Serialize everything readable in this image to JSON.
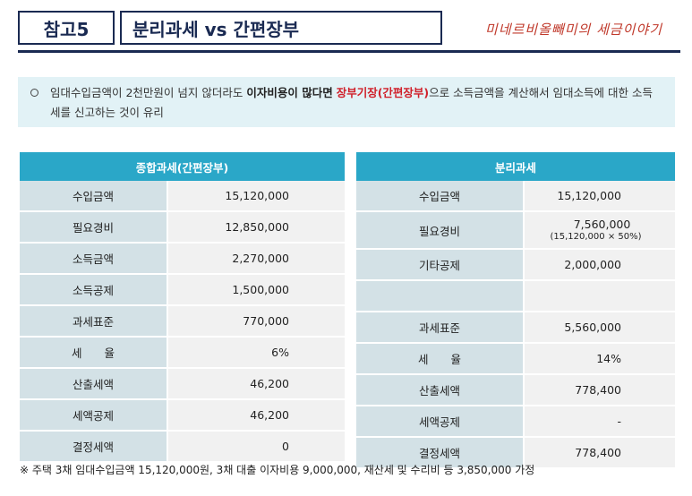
{
  "header": {
    "tag": "참고5",
    "title": "분리과세 vs 간편장부",
    "brand": "미네르비올빼미의 세금이야기"
  },
  "note": {
    "part1": "임대수입금액이 2천만원이 넘지 않더라도 ",
    "bold": "이자비용이 많다면",
    "part2": " ",
    "red": "장부기장(간편장부)",
    "part3": "으로 소득금액을 계산해서 임대소득에 대한 소득세를 신고하는 것이 유리"
  },
  "table_left": {
    "header": "종합과세(간편장부)",
    "rows": [
      {
        "label": "수입금액",
        "value": "15,120,000"
      },
      {
        "label": "필요경비",
        "value": "12,850,000"
      },
      {
        "label": "소득금액",
        "value": "2,270,000"
      },
      {
        "label": "소득공제",
        "value": "1,500,000"
      },
      {
        "label": "과세표준",
        "value": "770,000"
      },
      {
        "label": "세　　율",
        "value": "6%"
      },
      {
        "label": "산출세액",
        "value": "46,200"
      },
      {
        "label": "세액공제",
        "value": "46,200"
      },
      {
        "label": "결정세액",
        "value": "0"
      }
    ]
  },
  "table_right": {
    "header": "분리과세",
    "rows": [
      {
        "label": "수입금액",
        "value": "15,120,000"
      },
      {
        "label": "필요경비",
        "value": "7,560,000",
        "sub": "(15,120,000 × 50%)"
      },
      {
        "label": "기타공제",
        "value": "2,000,000"
      },
      {
        "label": "",
        "value": ""
      },
      {
        "label": "과세표준",
        "value": "5,560,000"
      },
      {
        "label": "세　　율",
        "value": "14%"
      },
      {
        "label": "산출세액",
        "value": "778,400"
      },
      {
        "label": "세액공제",
        "value": "-"
      },
      {
        "label": "결정세액",
        "value": "778,400"
      }
    ]
  },
  "footnote": "※ 주택 3채 임대수입금액 15,120,000원, 3채 대출 이자비용 9,000,000, 재산세 및 수리비 등 3,850,000 가정",
  "colors": {
    "navy": "#1a2a52",
    "header_blue": "#2aa7c8",
    "label_bg": "#d3e1e6",
    "value_bg": "#f1f1f1",
    "note_bg": "#e2f2f6",
    "red": "#d0202a"
  }
}
